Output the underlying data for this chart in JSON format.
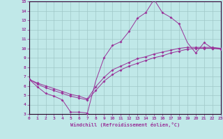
{
  "xlabel": "Windchill (Refroidissement éolien,°C)",
  "background_color": "#c0e8e8",
  "grid_color": "#a0c8c8",
  "line_color": "#993399",
  "spine_color": "#660066",
  "xmin": 0,
  "xmax": 23,
  "ymin": 3,
  "ymax": 15,
  "curve1_x": [
    0,
    1,
    2,
    3,
    4,
    5,
    6,
    7,
    8,
    9,
    10,
    11,
    12,
    13,
    14,
    15,
    16,
    17,
    18,
    19,
    20,
    21,
    22,
    23
  ],
  "curve1_y": [
    6.7,
    5.9,
    5.2,
    4.9,
    4.5,
    3.2,
    3.2,
    3.1,
    6.5,
    9.0,
    10.3,
    10.7,
    11.8,
    13.2,
    13.8,
    15.2,
    13.8,
    13.3,
    12.6,
    10.6,
    9.5,
    10.6,
    10.0,
    10.0
  ],
  "curve1_marker_x": [
    0,
    1,
    2,
    3,
    4,
    5,
    6,
    7,
    9,
    10,
    11,
    12,
    13,
    14,
    15,
    16,
    17,
    18,
    20,
    21,
    22,
    23
  ],
  "curve1_marker_y": [
    6.7,
    5.9,
    5.2,
    4.9,
    4.5,
    3.2,
    3.2,
    3.1,
    9.0,
    10.3,
    10.7,
    11.8,
    13.2,
    13.8,
    15.2,
    13.8,
    13.3,
    12.6,
    9.5,
    10.6,
    10.0,
    10.0
  ],
  "curve2_x": [
    0,
    1,
    2,
    3,
    4,
    5,
    6,
    7,
    8,
    9,
    10,
    11,
    12,
    13,
    14,
    15,
    16,
    17,
    18,
    19,
    20,
    21,
    22,
    23
  ],
  "curve2_y": [
    6.7,
    6.2,
    5.8,
    5.5,
    5.2,
    4.9,
    4.7,
    4.5,
    5.5,
    6.5,
    7.2,
    7.7,
    8.1,
    8.4,
    8.7,
    9.0,
    9.2,
    9.5,
    9.7,
    9.9,
    10.0,
    10.0,
    10.0,
    9.9
  ],
  "curve3_x": [
    0,
    1,
    2,
    3,
    4,
    5,
    6,
    7,
    8,
    9,
    10,
    11,
    12,
    13,
    14,
    15,
    16,
    17,
    18,
    19,
    20,
    21,
    22,
    23
  ],
  "curve3_y": [
    6.7,
    6.3,
    6.0,
    5.7,
    5.4,
    5.1,
    4.9,
    4.6,
    5.9,
    6.9,
    7.7,
    8.1,
    8.5,
    8.9,
    9.1,
    9.4,
    9.6,
    9.8,
    10.0,
    10.1,
    10.1,
    10.1,
    10.1,
    10.0
  ]
}
